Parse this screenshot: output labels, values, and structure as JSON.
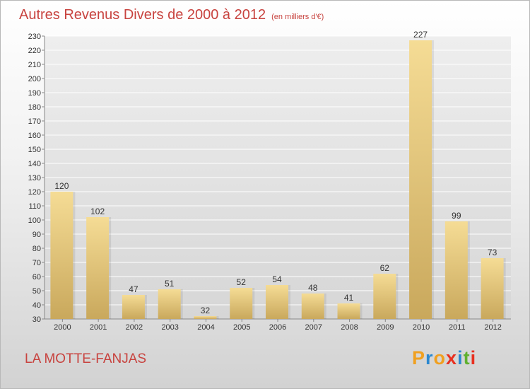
{
  "header": {
    "title": "Autres Revenus Divers de 2000 à 2012",
    "subtitle": "(en milliers d'€)"
  },
  "footer": {
    "place": "LA MOTTE-FANJAS",
    "logo_text": "Proxiti"
  },
  "colors": {
    "title": "#c8433f",
    "bar_light": "#f5dc95",
    "bar_dark": "#c9a85c",
    "logo_letters": [
      "#f0a020",
      "#2a88d0",
      "#f0a020",
      "#e83020",
      "#2a88d0",
      "#60b030",
      "#e83020"
    ]
  },
  "chart_data": {
    "type": "bar",
    "title": "Autres Revenus Divers de 2000 à 2012",
    "subtitle": "(en milliers d'€)",
    "categories": [
      "2000",
      "2001",
      "2002",
      "2003",
      "2004",
      "2005",
      "2006",
      "2007",
      "2008",
      "2009",
      "2010",
      "2011",
      "2012"
    ],
    "values": [
      120,
      102,
      47,
      51,
      32,
      52,
      54,
      48,
      41,
      62,
      227,
      99,
      73
    ],
    "ylim": [
      30,
      230
    ],
    "yticks": [
      30,
      40,
      50,
      60,
      70,
      80,
      90,
      100,
      110,
      120,
      130,
      140,
      150,
      160,
      170,
      180,
      190,
      200,
      210,
      220,
      230
    ],
    "grid": true,
    "data_labels": true,
    "xlabel": "",
    "ylabel": ""
  }
}
